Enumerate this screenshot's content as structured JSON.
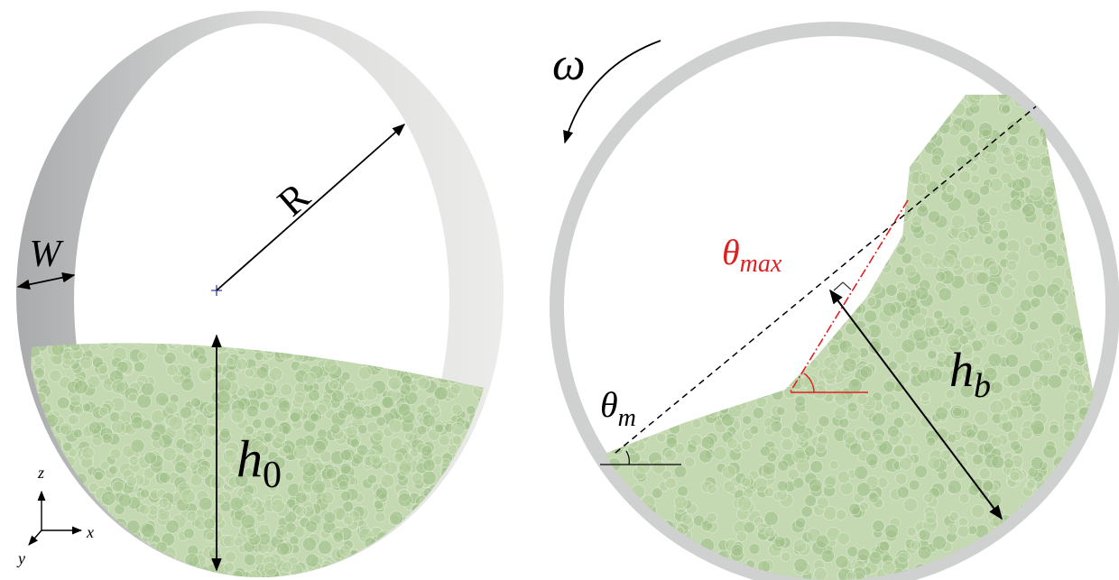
{
  "left_panel": {
    "labels": {
      "W": "W",
      "R": "R",
      "h0": {
        "base": "h",
        "sub": "0"
      }
    },
    "axes": {
      "z": "z",
      "x": "x",
      "y": "y"
    }
  },
  "right_panel": {
    "omega": "ω",
    "theta_max": {
      "base": "θ",
      "sub": "max"
    },
    "theta_m": {
      "base": "θ",
      "sub": "m"
    },
    "h_b": {
      "base": "h",
      "sub": "b"
    }
  }
}
